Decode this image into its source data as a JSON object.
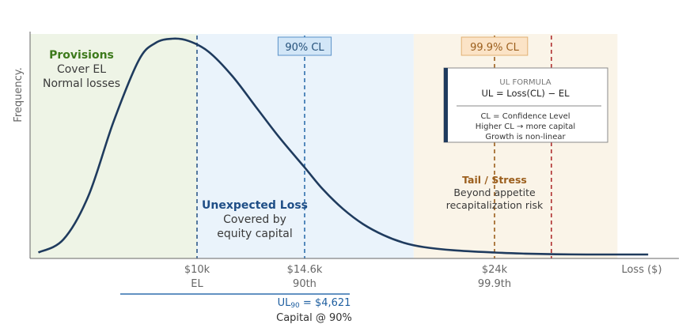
{
  "chart_data": {
    "type": "area",
    "title": "",
    "xlabel": "Loss ($)",
    "ylabel": "Frequency.",
    "xlim": [
      0,
      36000
    ],
    "ylim": [
      0,
      1
    ],
    "grid": false,
    "series": [
      {
        "values_description_free": true,
        "x": [
          500,
          2000,
          3500,
          5000,
          6500,
          7500,
          8500,
          9500,
          10500,
          11500,
          12500,
          13500,
          14600,
          15500,
          16500,
          17500,
          18500,
          19500,
          20500,
          22000,
          24000,
          26000,
          28000,
          30000,
          32000,
          34000
        ],
        "y": [
          0.02,
          0.08,
          0.28,
          0.62,
          0.9,
          0.98,
          1.0,
          0.99,
          0.94,
          0.83,
          0.69,
          0.55,
          0.41,
          0.31,
          0.22,
          0.15,
          0.1,
          0.065,
          0.045,
          0.03,
          0.02,
          0.015,
          0.012,
          0.011,
          0.011,
          0.011
        ]
      }
    ],
    "ticks": [
      {
        "x": 10000,
        "label": "$10k",
        "sublabel": "EL"
      },
      {
        "x": 14600,
        "label": "$14.6k",
        "sublabel": "90th"
      },
      {
        "x": 24000,
        "label": "$24k",
        "sublabel": "99.9th"
      }
    ],
    "regions": [
      {
        "name": "provisions",
        "x0": 0,
        "x1": 10000,
        "color": "#eef4e6"
      },
      {
        "name": "unexpected",
        "x0": 10000,
        "x1": 20000,
        "color": "#eaf3fb"
      },
      {
        "name": "tail",
        "x0": 20000,
        "x1": 32000,
        "color": "#faf4e8"
      }
    ],
    "vlines": [
      {
        "x": 10000,
        "color": "#2f5a8a"
      },
      {
        "x": 14600,
        "color": "#2f6fad"
      },
      {
        "x": 24000,
        "color": "#9b5e1c"
      },
      {
        "x": 27700,
        "color": "#b03030"
      }
    ],
    "cl_badges": [
      {
        "x": 14600,
        "label": "90% CL",
        "fill": "#d2e6f7",
        "stroke": "#5a92c8",
        "text_color": "#24507a"
      },
      {
        "x": 24000,
        "label": "99.9% CL",
        "fill": "#fbe3c6",
        "stroke": "#e2b074",
        "text_color": "#9b5e1c"
      }
    ],
    "annotations": {
      "provisions": {
        "title": "Provisions",
        "lines": [
          "Cover EL",
          "Normal losses"
        ]
      },
      "unexpected": {
        "title": "Unexpected Loss",
        "lines": [
          "Covered by",
          "equity capital"
        ]
      },
      "tail": {
        "title": "Tail / Stress",
        "lines": [
          "Beyond appetite",
          "recapitalization risk"
        ]
      }
    },
    "formula_box": {
      "heading": "UL FORMULA",
      "formula": "UL = Loss(CL) − EL",
      "lines": [
        "CL = Confidence Level",
        "Higher CL → more capital",
        "Growth is non-linear"
      ]
    },
    "ul_bracket": {
      "x0": 0,
      "x1": 14600,
      "label_main": "UL",
      "label_sub": "90",
      "label_value": " = $4,621",
      "caption": "Capital @ 90%"
    },
    "colors": {
      "curve": "#1f3b5e",
      "axis": "#666666",
      "tick_text": "#666666",
      "provisions_title": "#3d7a1c",
      "unexpected_title": "#1f4e86",
      "tail_title": "#9b5e1c",
      "body_text": "#3a3a3a",
      "ul_line": "#2f6fad",
      "ul_text": "#1f5fa0"
    }
  }
}
